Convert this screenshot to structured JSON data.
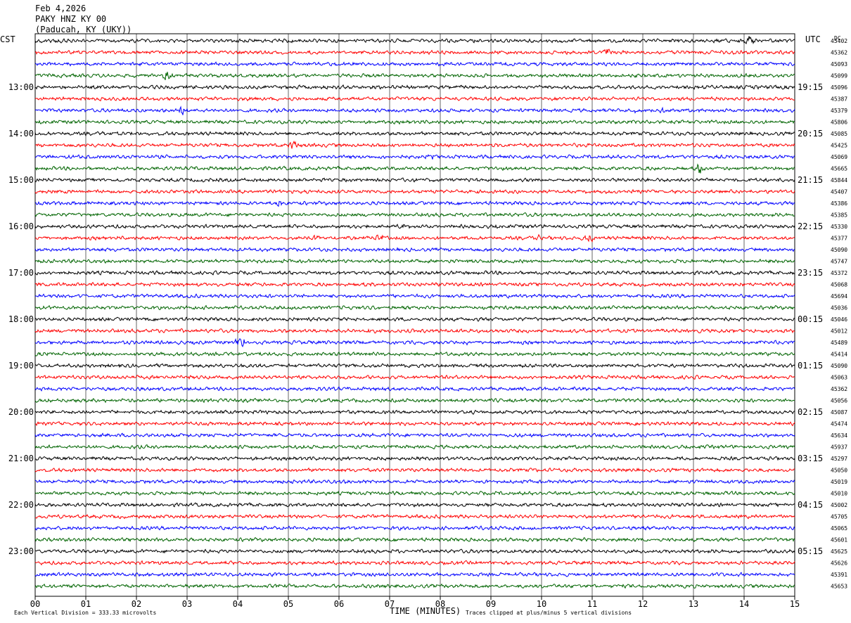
{
  "header": {
    "date": "Feb 4,2026",
    "station": "PAKY HNZ KY 00",
    "location": "(Paducah, KY (UKY))"
  },
  "left_zone": "CST",
  "right_zone": "UTC",
  "dc_label": "DC",
  "footer": {
    "left": "Each Vertical Division =  333.33 microvolts",
    "center": "TIME (MINUTES)",
    "right": "Traces clipped at plus/minus 5 vertical divisions"
  },
  "colors": {
    "black": "#000000",
    "red": "#ff0000",
    "blue": "#0000ff",
    "green": "#006400",
    "grid": "#000000"
  },
  "chart_data": {
    "type": "line",
    "title": "Feb 4,2026 PAKY HNZ KY 00 (Paducah, KY (UKY))",
    "xlabel": "TIME (MINUTES)",
    "x_ticks": [
      "00",
      "01",
      "02",
      "03",
      "04",
      "05",
      "06",
      "07",
      "08",
      "09",
      "10",
      "11",
      "12",
      "13",
      "14",
      "15"
    ],
    "xlim": [
      0,
      15
    ],
    "trace_minutes": 15,
    "trace_color_cycle": [
      "black",
      "red",
      "blue",
      "green"
    ],
    "left_hour_labels": [
      "13:00",
      "14:00",
      "15:00",
      "16:00",
      "17:00",
      "18:00",
      "19:00",
      "20:00",
      "21:00",
      "22:00",
      "23:00"
    ],
    "right_hour_labels": [
      "19:15",
      "20:15",
      "21:15",
      "22:15",
      "23:15",
      "00:15",
      "01:15",
      "02:15",
      "03:15",
      "04:15",
      "05:15"
    ],
    "dc_offsets": [
      "45402",
      "45362",
      "45093",
      "45099",
      "45096",
      "45387",
      "45379",
      "45806",
      "45085",
      "45425",
      "45069",
      "45665",
      "45844",
      "45407",
      "45386",
      "45385",
      "45330",
      "45377",
      "45090",
      "45747",
      "45372",
      "45068",
      "45694",
      "45036",
      "45046",
      "45012",
      "45489",
      "45414",
      "45090",
      "45063",
      "45362",
      "45056",
      "45087",
      "45474",
      "45634",
      "45937",
      "45297",
      "45050",
      "45019",
      "45010",
      "45002",
      "45705",
      "45065",
      "45601",
      "45625",
      "45626",
      "45391",
      "45653"
    ],
    "events": [
      {
        "trace": 0,
        "minute": 14.1,
        "amplitude": 4
      },
      {
        "trace": 1,
        "minute": 11.3,
        "amplitude": 3
      },
      {
        "trace": 3,
        "minute": 2.6,
        "amplitude": 3
      },
      {
        "trace": 6,
        "minute": 2.9,
        "amplitude": 3
      },
      {
        "trace": 6,
        "minute": 11.9,
        "amplitude": 2
      },
      {
        "trace": 6,
        "minute": 12.4,
        "amplitude": 2
      },
      {
        "trace": 9,
        "minute": 5.1,
        "amplitude": 3
      },
      {
        "trace": 10,
        "minute": 7.8,
        "amplitude": 2
      },
      {
        "trace": 11,
        "minute": 13.15,
        "amplitude": 4
      },
      {
        "trace": 14,
        "minute": 4.8,
        "amplitude": 2
      },
      {
        "trace": 16,
        "minute": 7.3,
        "amplitude": 2
      },
      {
        "trace": 17,
        "minute": 5.5,
        "amplitude": 2
      },
      {
        "trace": 17,
        "minute": 6.8,
        "amplitude": 2
      },
      {
        "trace": 17,
        "minute": 9.9,
        "amplitude": 2
      },
      {
        "trace": 17,
        "minute": 10.95,
        "amplitude": 3
      },
      {
        "trace": 25,
        "minute": 6.6,
        "amplitude": 2
      },
      {
        "trace": 26,
        "minute": 4.05,
        "amplitude": 5
      },
      {
        "trace": 26,
        "minute": 8.5,
        "amplitude": 2
      }
    ]
  }
}
